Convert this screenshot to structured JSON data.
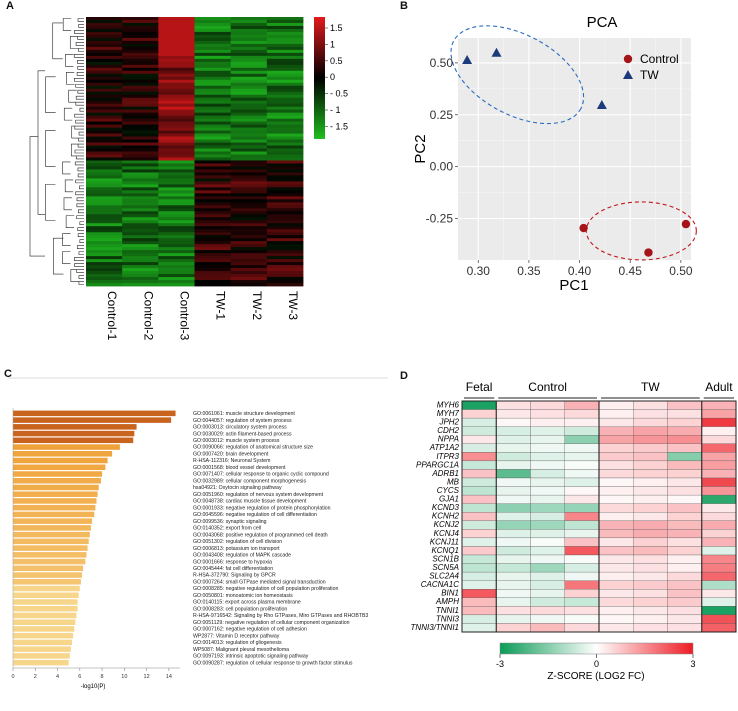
{
  "panels": {
    "a": {
      "label": "A"
    },
    "b": {
      "label": "B"
    },
    "c": {
      "label": "C"
    },
    "d": {
      "label": "D"
    }
  },
  "heatmap_a": {
    "samples": [
      "Control-1",
      "Control-2",
      "Control-3",
      "TW-1",
      "TW-2",
      "TW-3"
    ],
    "legend_ticks": [
      "1.5",
      "1",
      "0.5",
      "0",
      "- 0.5",
      "- 1",
      "- 1.5"
    ],
    "colors": {
      "low": "#1fbf1f",
      "mid": "#000000",
      "high": "#e31a1c"
    }
  },
  "chart_data": [
    {
      "type": "scatter",
      "title": "PCA",
      "xlabel": "PC1",
      "ylabel": "PC2",
      "xlim": [
        0.28,
        0.51
      ],
      "ylim": [
        -0.45,
        0.62
      ],
      "xticks": [
        0.3,
        0.35,
        0.4,
        0.45,
        0.5
      ],
      "xtick_labels": [
        "0.30",
        "0.35",
        "0.40",
        "0.45",
        "0.50"
      ],
      "yticks": [
        0.5,
        0.25,
        0.0,
        -0.25
      ],
      "ytick_labels": [
        "0.50",
        "0.25",
        "0.00",
        "-0.25"
      ],
      "legend_position": "top-right",
      "series": [
        {
          "name": "Control",
          "color": "#a51418",
          "marker": "circle",
          "points": [
            [
              0.404,
              -0.296
            ],
            [
              0.468,
              -0.414
            ],
            [
              0.505,
              -0.277
            ]
          ]
        },
        {
          "name": "TW",
          "color": "#1d3a7a",
          "marker": "triangle",
          "points": [
            [
              0.289,
              0.514
            ],
            [
              0.318,
              0.549
            ],
            [
              0.422,
              0.297
            ]
          ]
        }
      ]
    },
    {
      "type": "bar",
      "orientation": "horizontal",
      "xlabel": "-log10(P)",
      "xlim": [
        0,
        15
      ],
      "xticks": [
        0,
        2,
        4,
        6,
        8,
        10,
        12,
        14
      ],
      "categories": [
        "GO:0061061: muscle structure development",
        "GO:0044057: regulation of system process",
        "GO:0003013: circulatory system process",
        "GO:0030029: actin filament-based process",
        "GO:0003012: muscle system process",
        "GO:0090066: regulation of anatomical structure size",
        "GO:0007420: brain development",
        "R-HSA-112316: Neuronal System",
        "GO:0001568: blood vessel development",
        "GO:0071407: cellular response to organic cyclic compound",
        "GO:0032989: cellular component morphogenesis",
        "hsa04921: Oxytocin signaling pathway",
        "GO:0051960: regulation of nervous system development",
        "GO:0048738: cardiac muscle tissue development",
        "GO:0001933: negative regulation of protein phosphorylation",
        "GO:0045596: negative regulation of cell differentiation",
        "GO:0099536: synaptic signaling",
        "GO:0140352: export from cell",
        "GO:0043068: positive regulation of programmed cell death",
        "GO:0051302: regulation of cell division",
        "GO:0006813: potassium ion transport",
        "GO:0043408: regulation of MAPK cascade",
        "GO:0001666: response to hypoxia",
        "GO:0045444: fat cell differentiation",
        "R-HSA-372790: Signaling by GPCR",
        "GO:0007264: small GTPase mediated signal transduction",
        "GO:0008285: negative regulation of cell population proliferation",
        "GO:0050801: monoatomic ion homeostasis",
        "GO:0140115: export across plasma membrane",
        "GO:0008283: cell population proliferation",
        "R-HSA-9716542: Signaling by Rho GTPases, Miro GTPases and RHOBTB3",
        "GO:0051129: negative regulation of cellular component organization",
        "GO:0007162: negative regulation of cell adhesion",
        "WP2877: Vitamin D receptor pathway",
        "GO:0014013: regulation of gliogenesis",
        "WP5087: Malignant pleural mesothelioma",
        "GO:0097193: intrinsic apoptotic signaling pathway",
        "GO:0090287: regulation of cellular response to growth factor stimulus"
      ],
      "values": [
        14.6,
        14.2,
        11.1,
        10.9,
        10.8,
        9.6,
        8.9,
        8.5,
        8.3,
        8.0,
        7.9,
        7.7,
        7.6,
        7.5,
        7.4,
        7.3,
        7.1,
        7.0,
        6.9,
        6.8,
        6.7,
        6.6,
        6.5,
        6.3,
        6.2,
        6.1,
        6.0,
        5.9,
        5.8,
        5.8,
        5.7,
        5.6,
        5.5,
        5.4,
        5.3,
        5.2,
        5.1,
        5.0
      ],
      "colors": {
        "strong": "#c9641f",
        "medium": "#f0a23a",
        "weak": "#f7d68c"
      }
    },
    {
      "type": "heatmap",
      "groups": [
        {
          "name": "Fetal",
          "columns": 1
        },
        {
          "name": "Control",
          "columns": 3
        },
        {
          "name": "TW",
          "columns": 3
        },
        {
          "name": "Adult",
          "columns": 1
        }
      ],
      "genes": [
        "MYH6",
        "MYH7",
        "JPH2",
        "CDH2",
        "NPPA",
        "ATP1A2",
        "ITPR3",
        "PPARGC1A",
        "ADRB1",
        "MB",
        "CYCS",
        "GJA1",
        "KCND3",
        "KCNH2",
        "KCNJ2",
        "KCNJ4",
        "KCNJ11",
        "KCNQ1",
        "SCN1B",
        "SCN5A",
        "SLC2A4",
        "CACNA1C",
        "BIN1",
        "AMPH",
        "TNNI1",
        "TNNI3",
        "TNNI3/TNNI1"
      ],
      "values": [
        [
          -2.8,
          0.4,
          0.5,
          1.0,
          0.2,
          0.4,
          0.8,
          1.0
        ],
        [
          0.6,
          0.3,
          0.4,
          0.5,
          0.2,
          0.4,
          0.4,
          1.2
        ],
        [
          -0.5,
          0.1,
          0.2,
          0.2,
          0.3,
          0.5,
          0.6,
          2.6
        ],
        [
          -0.6,
          -0.5,
          -0.4,
          -0.6,
          1.0,
          1.2,
          1.1,
          0.2
        ],
        [
          0.3,
          -0.4,
          -0.3,
          -1.4,
          1.2,
          1.4,
          1.5,
          0.5
        ],
        [
          -0.5,
          -0.3,
          -0.2,
          -0.2,
          0.6,
          0.7,
          0.8,
          2.0
        ],
        [
          1.5,
          -0.6,
          -0.4,
          -0.3,
          0.7,
          0.8,
          -1.5,
          1.2
        ],
        [
          -0.7,
          -0.3,
          -0.2,
          -0.1,
          0.4,
          0.6,
          0.9,
          1.3
        ],
        [
          0.8,
          -2.0,
          -0.5,
          -0.2,
          0.5,
          0.6,
          0.6,
          1.0
        ],
        [
          -0.6,
          -0.2,
          -0.3,
          -0.4,
          0.1,
          0.2,
          0.3,
          2.4
        ],
        [
          -0.8,
          -0.3,
          -0.2,
          0.1,
          0.2,
          0.3,
          0.4,
          1.4
        ],
        [
          0.8,
          -0.2,
          -0.3,
          0.3,
          0.1,
          0.2,
          0.1,
          -2.6
        ],
        [
          -0.8,
          -1.4,
          -1.2,
          -1.3,
          0.5,
          0.6,
          0.8,
          0.3
        ],
        [
          0.8,
          -0.4,
          -0.5,
          1.6,
          0.2,
          0.3,
          0.6,
          0.5
        ],
        [
          -0.6,
          -1.3,
          -1.2,
          -0.8,
          1.0,
          1.1,
          0.9,
          1.1
        ],
        [
          0.6,
          -0.4,
          -0.4,
          -0.3,
          0.9,
          1.1,
          1.0,
          0.6
        ],
        [
          -0.4,
          -0.2,
          -0.1,
          0.8,
          0.3,
          0.6,
          0.4,
          1.0
        ],
        [
          0.7,
          -0.6,
          -0.4,
          2.2,
          0.8,
          0.9,
          0.6,
          -0.4
        ],
        [
          -0.7,
          -0.3,
          -0.2,
          -0.1,
          0.3,
          0.4,
          0.2,
          1.6
        ],
        [
          -0.8,
          -0.7,
          -1.2,
          -0.5,
          0.3,
          0.4,
          0.2,
          1.7
        ],
        [
          -0.5,
          -0.3,
          -0.4,
          -0.2,
          0.2,
          0.3,
          0.5,
          2.0
        ],
        [
          -0.4,
          -0.3,
          -0.5,
          1.8,
          0.6,
          0.7,
          0.8,
          -1.0
        ],
        [
          2.2,
          -0.2,
          -0.3,
          0.6,
          0.3,
          0.4,
          0.8,
          0.3
        ],
        [
          0.9,
          -0.3,
          -0.6,
          -0.7,
          0.5,
          0.6,
          0.7,
          -0.4
        ],
        [
          0.9,
          0.4,
          0.5,
          0.4,
          0.2,
          0.3,
          0.4,
          -2.8
        ],
        [
          -0.5,
          -0.3,
          -0.2,
          -0.1,
          0.1,
          0.2,
          0.3,
          2.3
        ],
        [
          -0.4,
          0.6,
          0.9,
          0.5,
          0.3,
          0.4,
          0.4,
          2.1
        ]
      ],
      "colorbar": {
        "min": -3,
        "max": 3,
        "ticks": [
          "-3",
          "0",
          "3"
        ],
        "label": "Z-SCORE (LOG2 FC)",
        "colors": {
          "low": "#0b9b57",
          "mid": "#ffffff",
          "high": "#ee1c24"
        }
      }
    }
  ]
}
